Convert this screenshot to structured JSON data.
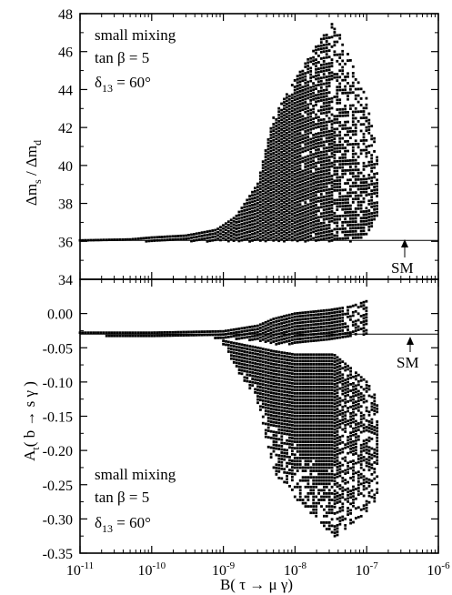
{
  "chart_data": [
    {
      "type": "scatter",
      "xlabel": "B( τ → μ γ)",
      "ylabel": "Δm_s / Δm_d",
      "xscale": "log",
      "xlim": [
        1e-11,
        1e-06
      ],
      "ylim": [
        34,
        48
      ],
      "yticks": [
        34,
        36,
        38,
        40,
        42,
        44,
        46,
        48
      ],
      "ytick_labels": [
        "34",
        "36",
        "38",
        "40",
        "42",
        "44",
        "46",
        "48"
      ],
      "annotations": [
        "small mixing",
        "tan β =  5",
        "δ",
        "13",
        " = 60°"
      ],
      "reference_line": {
        "y": 36.05,
        "label": "SM"
      },
      "series": [
        {
          "marker": "square",
          "color": "#000000",
          "envelope": [
            {
              "x": 1e-11,
              "y_min": 36.0,
              "y_max": 36.05
            },
            {
              "x": 5e-11,
              "y_min": 36.0,
              "y_max": 36.1
            },
            {
              "x": 1e-10,
              "y_min": 36.0,
              "y_max": 36.2
            },
            {
              "x": 3e-10,
              "y_min": 36.0,
              "y_max": 36.3
            },
            {
              "x": 8e-10,
              "y_min": 36.0,
              "y_max": 36.6
            },
            {
              "x": 1.5e-09,
              "y_min": 36.0,
              "y_max": 37.3
            },
            {
              "x": 3e-09,
              "y_min": 36.0,
              "y_max": 39.0
            },
            {
              "x": 5e-09,
              "y_min": 36.0,
              "y_max": 42.5
            },
            {
              "x": 1e-08,
              "y_min": 36.0,
              "y_max": 44.5
            },
            {
              "x": 2e-08,
              "y_min": 36.0,
              "y_max": 46.3
            },
            {
              "x": 3.5e-08,
              "y_min": 36.0,
              "y_max": 47.6
            },
            {
              "x": 6e-08,
              "y_min": 36.0,
              "y_max": 45.5
            },
            {
              "x": 1e-07,
              "y_min": 36.3,
              "y_max": 43.5
            },
            {
              "x": 1.5e-07,
              "y_min": 37.5,
              "y_max": 41.2
            }
          ]
        }
      ]
    },
    {
      "type": "scatter",
      "xlabel": "B( τ → μ γ)",
      "ylabel": "A_t( b → s γ )",
      "xscale": "log",
      "xlim": [
        1e-11,
        1e-06
      ],
      "ylim": [
        -0.35,
        0.05
      ],
      "xticks_exp": [
        "-11",
        "-10",
        "-9",
        "-8",
        "-7",
        "-6"
      ],
      "xtick_base": "10",
      "yticks": [
        -0.35,
        -0.3,
        -0.25,
        -0.2,
        -0.15,
        -0.1,
        -0.05,
        0.0
      ],
      "ytick_labels": [
        "-0.35",
        "-0.30",
        "-0.25",
        "-0.20",
        "-0.15",
        "-0.10",
        "-0.05",
        "0.00"
      ],
      "annotations": [
        "small mixing",
        "tan β =  5",
        "δ",
        "13",
        " = 60°"
      ],
      "reference_line": {
        "y": -0.03,
        "label": "SM"
      },
      "series": [
        {
          "marker": "square",
          "color": "#000000",
          "upper_branch": [
            {
              "x": 1e-11,
              "y_min": -0.032,
              "y_max": -0.028
            },
            {
              "x": 1e-10,
              "y_min": -0.034,
              "y_max": -0.028
            },
            {
              "x": 1e-09,
              "y_min": -0.036,
              "y_max": -0.026
            },
            {
              "x": 3e-09,
              "y_min": -0.04,
              "y_max": -0.018
            },
            {
              "x": 5e-09,
              "y_min": -0.045,
              "y_max": -0.008
            },
            {
              "x": 1e-08,
              "y_min": -0.045,
              "y_max": 0.0
            },
            {
              "x": 3e-08,
              "y_min": -0.04,
              "y_max": 0.005
            },
            {
              "x": 6e-08,
              "y_min": -0.035,
              "y_max": 0.01
            },
            {
              "x": 1e-07,
              "y_min": -0.03,
              "y_max": 0.018
            }
          ],
          "lower_branch": [
            {
              "x": 1e-09,
              "y_min": -0.05,
              "y_max": -0.04
            },
            {
              "x": 3e-09,
              "y_min": -0.13,
              "y_max": -0.05
            },
            {
              "x": 5e-09,
              "y_min": -0.23,
              "y_max": -0.055
            },
            {
              "x": 1e-08,
              "y_min": -0.27,
              "y_max": -0.06
            },
            {
              "x": 2e-08,
              "y_min": -0.3,
              "y_max": -0.06
            },
            {
              "x": 3.5e-08,
              "y_min": -0.33,
              "y_max": -0.06
            },
            {
              "x": 6e-08,
              "y_min": -0.31,
              "y_max": -0.08
            },
            {
              "x": 1e-07,
              "y_min": -0.29,
              "y_max": -0.1
            },
            {
              "x": 1.5e-07,
              "y_min": -0.27,
              "y_max": -0.13
            }
          ]
        }
      ]
    }
  ]
}
